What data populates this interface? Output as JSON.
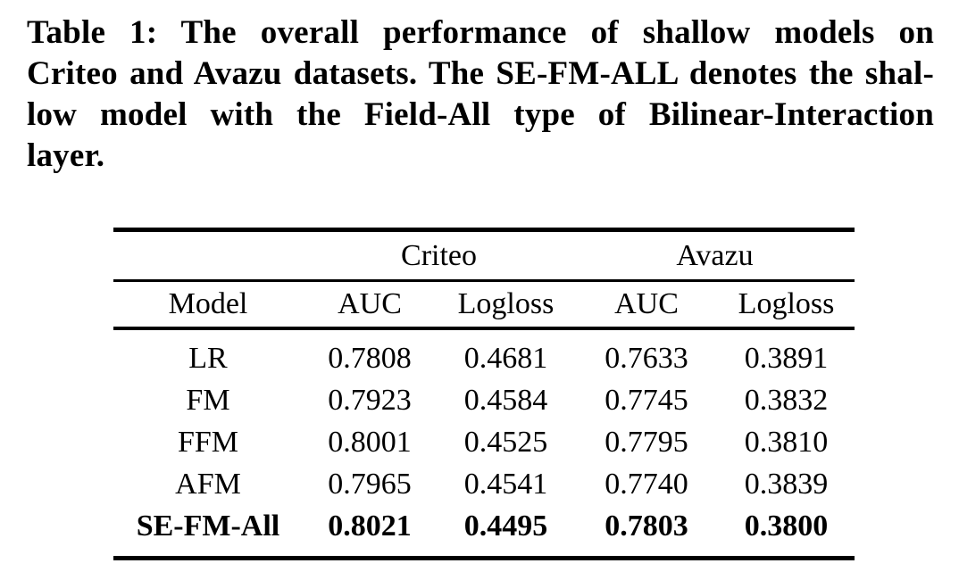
{
  "page": {
    "background_color": "#ffffff",
    "text_color": "#000000"
  },
  "caption": {
    "full_text": "Table 1: The overall performance of shallow models on Criteo and Avazu datasets. The SE-FM-ALL denotes the shallow model with the Field-All type of Bilinear-Interaction layer.",
    "lines": [
      "Table 1: The overall performance of shallow models on",
      "Criteo and Avazu datasets. The SE-FM-ALL denotes the shal-",
      "low model with the Field-All type of Bilinear-Interaction",
      "layer."
    ]
  },
  "table": {
    "groups": [
      {
        "label": "Criteo",
        "span": 2
      },
      {
        "label": "Avazu",
        "span": 2
      }
    ],
    "columns": [
      "Model",
      "AUC",
      "Logloss",
      "AUC",
      "Logloss"
    ],
    "rows": [
      {
        "model": "LR",
        "criteo_auc": "0.7808",
        "criteo_logloss": "0.4681",
        "avazu_auc": "0.7633",
        "avazu_logloss": "0.3891",
        "bold": false
      },
      {
        "model": "FM",
        "criteo_auc": "0.7923",
        "criteo_logloss": "0.4584",
        "avazu_auc": "0.7745",
        "avazu_logloss": "0.3832",
        "bold": false
      },
      {
        "model": "FFM",
        "criteo_auc": "0.8001",
        "criteo_logloss": "0.4525",
        "avazu_auc": "0.7795",
        "avazu_logloss": "0.3810",
        "bold": false
      },
      {
        "model": "AFM",
        "criteo_auc": "0.7965",
        "criteo_logloss": "0.4541",
        "avazu_auc": "0.7740",
        "avazu_logloss": "0.3839",
        "bold": false
      },
      {
        "model": "SE-FM-All",
        "criteo_auc": "0.8021",
        "criteo_logloss": "0.4495",
        "avazu_auc": "0.7803",
        "avazu_logloss": "0.3800",
        "bold": true
      }
    ]
  }
}
